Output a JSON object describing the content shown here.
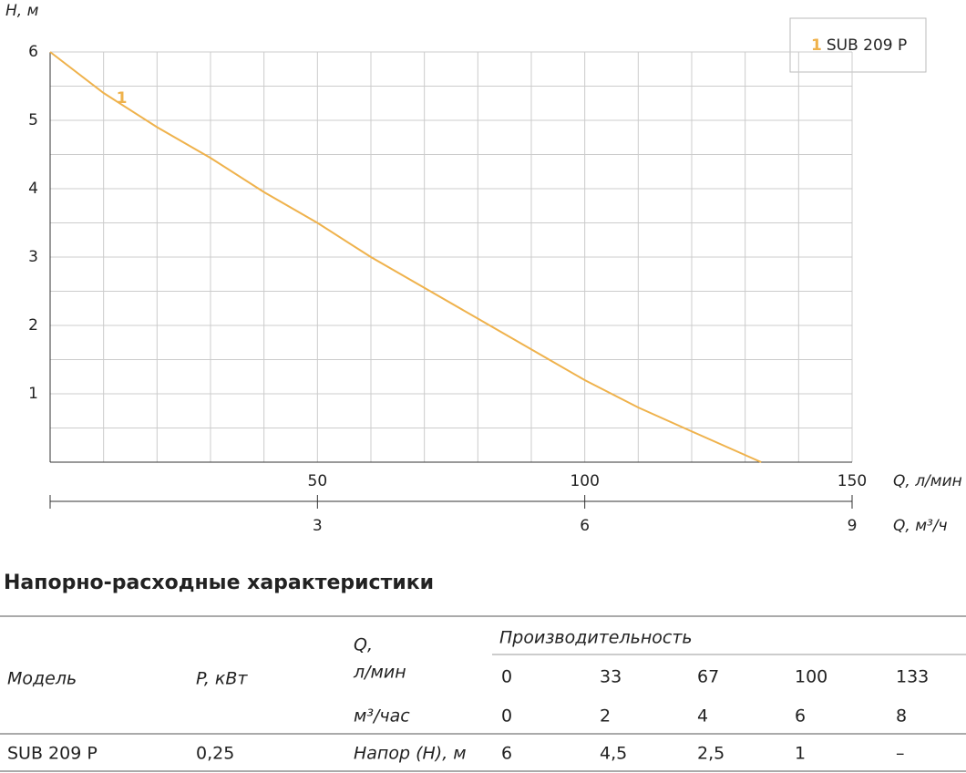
{
  "chart_data": {
    "type": "line",
    "y_label": "H, м",
    "x_label": "Q, л/мин",
    "x2_label": "Q, м³/ч",
    "x": [
      0,
      10,
      20,
      30,
      40,
      50,
      60,
      70,
      80,
      90,
      100,
      110,
      120,
      133
    ],
    "series": [
      {
        "name": "SUB 209 P",
        "label": "1",
        "color": "#efb24c",
        "values": [
          6,
          5.4,
          4.9,
          4.45,
          3.95,
          3.5,
          3.0,
          2.55,
          2.1,
          1.65,
          1.2,
          0.8,
          0.45,
          0
        ]
      }
    ],
    "xlim": [
      0,
      150
    ],
    "xticks": [
      50,
      100,
      150
    ],
    "x2lim": [
      0,
      9
    ],
    "x2ticks": [
      3,
      6,
      9
    ],
    "ylim": [
      0,
      6
    ],
    "yticks": [
      1,
      2,
      3,
      4,
      5,
      6
    ],
    "xgrid": [
      10,
      20,
      30,
      40,
      50,
      60,
      70,
      80,
      90,
      100,
      110,
      120,
      130,
      140,
      150
    ],
    "ygrid": [
      0.5,
      1,
      1.5,
      2,
      2.5,
      3,
      3.5,
      4,
      4.5,
      5,
      5.5,
      6
    ],
    "grid": true,
    "legend": "upper right"
  },
  "table": {
    "title": "Напорно-расходные характеристики",
    "header": {
      "model": "Модель",
      "power": "P, кВт",
      "q": "Q,",
      "q_unit": "л/мин",
      "group": "Производительность",
      "m3": "м³/час"
    },
    "flow_lpm": [
      "0",
      "33",
      "67",
      "100",
      "133"
    ],
    "flow_m3h": [
      "0",
      "2",
      "4",
      "6",
      "8"
    ],
    "rows": [
      [
        "SUB 209 P",
        "0,25",
        "Напор (H), м",
        "6",
        "4,5",
        "2,5",
        "1",
        "–"
      ]
    ]
  }
}
